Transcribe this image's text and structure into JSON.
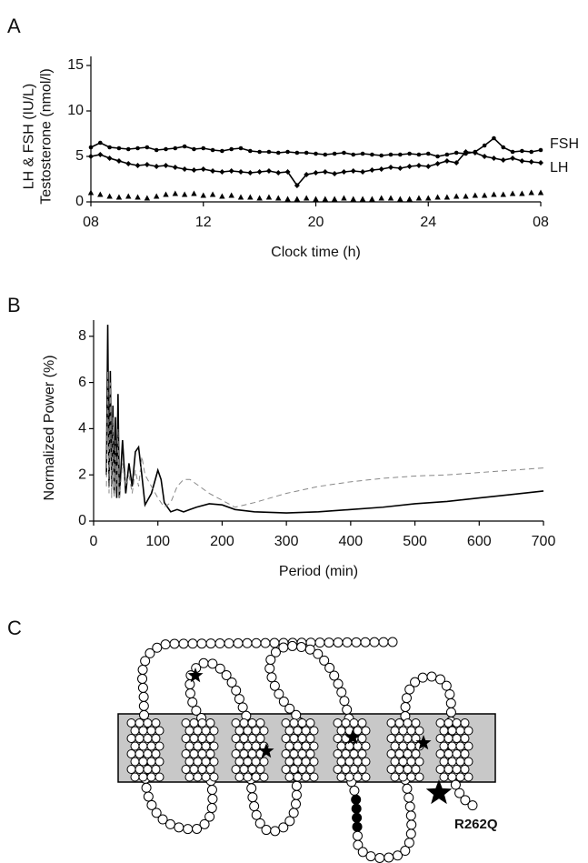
{
  "chart_data": [
    {
      "type": "line",
      "label": "A",
      "x_label": "Clock time (h)",
      "y_label": [
        "LH & FSH (IU/L)",
        "Testosterone (nmol/l)"
      ],
      "x": [
        0,
        0.5,
        1,
        1.5,
        2,
        2.5,
        3,
        3.5,
        4,
        4.5,
        5,
        5.5,
        6,
        6.5,
        7,
        7.5,
        8,
        8.5,
        9,
        9.5,
        10,
        10.5,
        11,
        11.5,
        12,
        12.5,
        13,
        13.5,
        14,
        14.5,
        15,
        15.5,
        16,
        16.5,
        17,
        17.5,
        18,
        18.5,
        19,
        19.5,
        20,
        20.5,
        21,
        21.5,
        22,
        22.5,
        23,
        23.5,
        24
      ],
      "series": [
        {
          "name": "FSH",
          "color": "#000000",
          "marker": "circle",
          "values": [
            6.0,
            6.5,
            6.0,
            5.9,
            5.8,
            5.9,
            6.0,
            5.7,
            5.8,
            5.9,
            6.1,
            5.8,
            5.9,
            5.7,
            5.6,
            5.8,
            5.9,
            5.6,
            5.5,
            5.5,
            5.4,
            5.5,
            5.4,
            5.4,
            5.3,
            5.2,
            5.3,
            5.4,
            5.2,
            5.3,
            5.2,
            5.1,
            5.2,
            5.2,
            5.3,
            5.2,
            5.3,
            5.0,
            5.2,
            5.4,
            5.3,
            5.5,
            6.2,
            7.0,
            6.0,
            5.5,
            5.6,
            5.5,
            5.7
          ]
        },
        {
          "name": "LH",
          "color": "#000000",
          "marker": "diamond",
          "values": [
            5.0,
            5.2,
            4.8,
            4.5,
            4.2,
            4.0,
            4.1,
            3.9,
            4.0,
            3.8,
            3.6,
            3.5,
            3.6,
            3.4,
            3.3,
            3.4,
            3.3,
            3.2,
            3.3,
            3.4,
            3.2,
            3.3,
            1.8,
            3.0,
            3.2,
            3.3,
            3.1,
            3.3,
            3.4,
            3.3,
            3.5,
            3.6,
            3.8,
            3.7,
            3.9,
            4.0,
            3.9,
            4.2,
            4.5,
            4.3,
            5.5,
            5.4,
            5.0,
            4.8,
            4.6,
            4.8,
            4.5,
            4.4,
            4.3
          ]
        },
        {
          "color": "#000000",
          "marker": "triangle",
          "line": false,
          "values": [
            1.0,
            0.8,
            0.6,
            0.5,
            0.6,
            0.5,
            0.4,
            0.6,
            0.8,
            0.9,
            0.8,
            0.9,
            0.7,
            0.8,
            0.6,
            0.7,
            0.5,
            0.5,
            0.4,
            0.5,
            0.4,
            0.3,
            0.3,
            0.4,
            0.3,
            0.3,
            0.3,
            0.4,
            0.3,
            0.3,
            0.3,
            0.4,
            0.4,
            0.3,
            0.3,
            0.4,
            0.4,
            0.5,
            0.5,
            0.6,
            0.6,
            0.7,
            0.7,
            0.8,
            0.8,
            0.9,
            0.9,
            1.0,
            1.0
          ]
        }
      ],
      "xlim": [
        0,
        24
      ],
      "xticks": [
        {
          "value": 0,
          "label": "08"
        },
        {
          "value": 6,
          "label": "12"
        },
        {
          "value": 12,
          "label": "20"
        },
        {
          "value": 18,
          "label": "24"
        },
        {
          "value": 24,
          "label": "08"
        }
      ],
      "ylim": [
        0,
        16
      ],
      "yticks": [
        0,
        5,
        10,
        15
      ]
    },
    {
      "type": "line",
      "label": "B",
      "x_label": "Period (min)",
      "y_label": [
        "Normalized Power (%)"
      ],
      "x": [
        20,
        22,
        24,
        26,
        28,
        30,
        32,
        34,
        36,
        38,
        40,
        45,
        50,
        55,
        60,
        65,
        70,
        75,
        80,
        90,
        100,
        105,
        110,
        120,
        130,
        140,
        150,
        160,
        180,
        200,
        220,
        250,
        300,
        350,
        400,
        450,
        500,
        550,
        600,
        650,
        700
      ],
      "series": [
        {
          "color": "#000000",
          "dash": false,
          "values": [
            2.0,
            8.5,
            1.5,
            6.5,
            1.5,
            5.0,
            1.2,
            4.5,
            1.0,
            5.5,
            1.0,
            3.5,
            1.2,
            2.5,
            1.5,
            3.0,
            3.2,
            2.0,
            0.7,
            1.2,
            2.2,
            1.8,
            0.8,
            0.4,
            0.5,
            0.4,
            0.5,
            0.6,
            0.75,
            0.7,
            0.5,
            0.4,
            0.35,
            0.4,
            0.5,
            0.6,
            0.75,
            0.85,
            1.0,
            1.15,
            1.3
          ]
        },
        {
          "color": "#888888",
          "dash": true,
          "values": [
            1.5,
            6.5,
            1.2,
            6.0,
            1.0,
            4.5,
            1.0,
            3.5,
            1.5,
            4.0,
            1.0,
            2.5,
            1.5,
            2.0,
            1.2,
            2.2,
            1.5,
            2.8,
            2.0,
            1.5,
            1.0,
            0.8,
            0.6,
            0.8,
            1.5,
            1.8,
            1.8,
            1.6,
            1.2,
            0.9,
            0.6,
            0.8,
            1.2,
            1.5,
            1.7,
            1.85,
            1.95,
            2.0,
            2.1,
            2.2,
            2.3
          ]
        }
      ],
      "xlim": [
        0,
        700
      ],
      "xticks": [
        0,
        100,
        200,
        300,
        400,
        500,
        600,
        700
      ],
      "ylim": [
        0,
        8.7
      ],
      "yticks": [
        0,
        2,
        4,
        6,
        8
      ]
    }
  ],
  "diagram": {
    "label": "C",
    "annotation": "R262Q"
  }
}
